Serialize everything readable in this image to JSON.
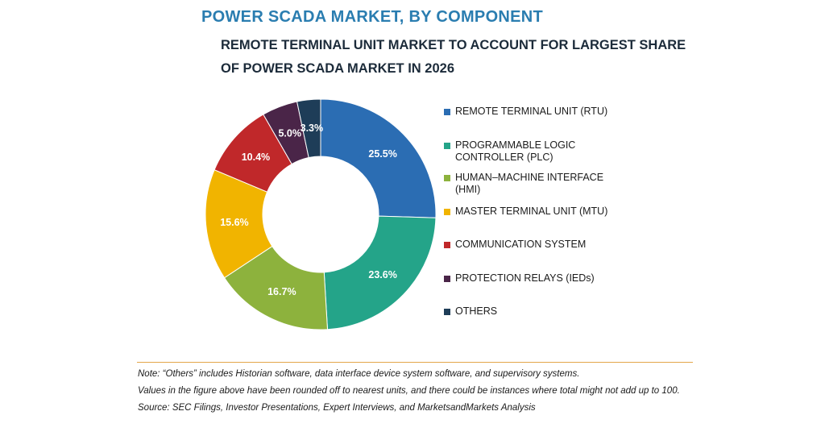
{
  "header": {
    "title": "POWER SCADA MARKET, BY COMPONENT",
    "subtitle": "REMOTE TERMINAL UNIT MARKET TO ACCOUNT FOR LARGEST SHARE OF POWER SCADA MARKET IN 2026"
  },
  "chart_data": {
    "type": "pie",
    "subtype": "donut",
    "title": "REMOTE TERMINAL UNIT MARKET TO ACCOUNT FOR LARGEST SHARE OF POWER SCADA MARKET IN 2026",
    "legend_position": "right",
    "categories": [
      "REMOTE TERMINAL UNIT (RTU)",
      "PROGRAMMABLE LOGIC CONTROLLER (PLC)",
      "HUMAN–MACHINE INTERFACE (HMI)",
      "MASTER TERMINAL UNIT (MTU)",
      "COMMUNICATION SYSTEM",
      "PROTECTION RELAYS (IEDs)",
      "OTHERS"
    ],
    "values": [
      25.5,
      23.6,
      16.7,
      15.6,
      10.4,
      5.0,
      3.3
    ],
    "labels": [
      "25.5%",
      "23.6%",
      "16.7%",
      "15.6%",
      "10.4%",
      "5.0%",
      "3.3%"
    ],
    "colors": [
      "#2b6db3",
      "#24a489",
      "#8db23d",
      "#f1b400",
      "#c0282a",
      "#4a2548",
      "#1e3d58"
    ]
  },
  "notes": [
    "Note: “Others” includes Historian software, data interface device system software, and supervisory systems.",
    "Values in the figure above have been rounded off to nearest units, and there could be instances where total might not add up to 100.",
    "Source: SEC Filings, Investor Presentations, Expert Interviews, and MarketsandMarkets Analysis"
  ]
}
